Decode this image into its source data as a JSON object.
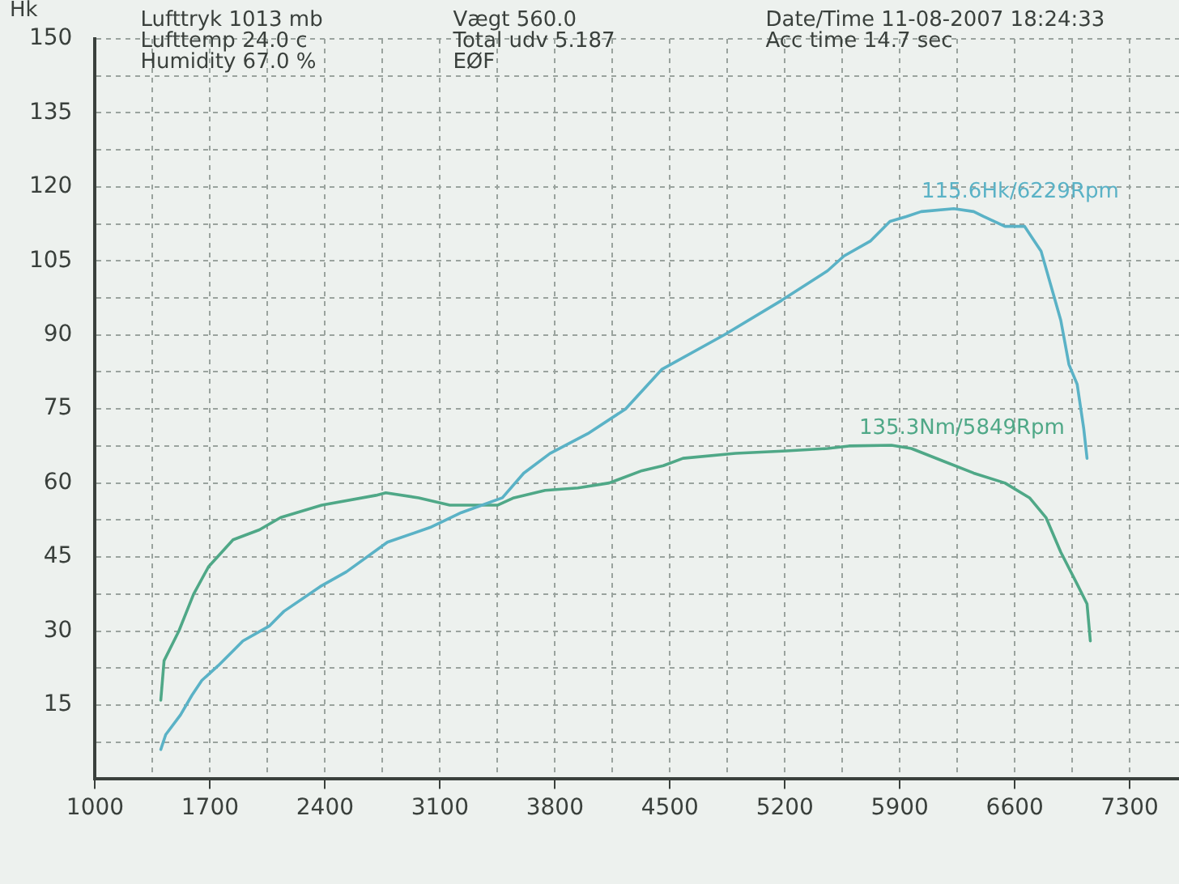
{
  "chart_data": {
    "type": "line",
    "ylabel": "Hk",
    "annotations": [
      "Lufttryk 1013 mb",
      "Lufttemp 24.0 c",
      "Humidity 67.0 %",
      "Vægt 560.0",
      "Total udv 5.187",
      "EØF",
      "Date/Time 11-08-2007 18:24:33",
      "Acc time 14.7 sec"
    ],
    "xlim": [
      1000,
      7600
    ],
    "xticks": [
      1000,
      {
        "value": 1350,
        "label": null
      },
      1700,
      {
        "value": 2050,
        "label": null
      },
      2400,
      {
        "value": 2750,
        "label": null
      },
      3100,
      {
        "value": 3450,
        "label": null
      },
      3800,
      {
        "value": 4150,
        "label": null
      },
      4500,
      {
        "value": 4850,
        "label": null
      },
      5200,
      {
        "value": 5550,
        "label": null
      },
      5900,
      {
        "value": 6250,
        "label": null
      },
      6600,
      {
        "value": 6950,
        "label": null
      },
      7300
    ],
    "ylim": [
      0,
      150
    ],
    "yticks": [
      {
        "value": 0,
        "label": null
      },
      {
        "value": 7.5,
        "label": null
      },
      15,
      {
        "value": 22.5,
        "label": null
      },
      30,
      {
        "value": 37.5,
        "label": null
      },
      45,
      {
        "value": 52.5,
        "label": null
      },
      60,
      {
        "value": 67.5,
        "label": null
      },
      75,
      {
        "value": 82.5,
        "label": null
      },
      90,
      {
        "value": 97.5,
        "label": null
      },
      105,
      {
        "value": 112.5,
        "label": null
      },
      120,
      {
        "value": 127.5,
        "label": null
      },
      135,
      {
        "value": 142.5,
        "label": null
      },
      150
    ],
    "y2lim": [
      0,
      300
    ],
    "grid": true,
    "marker": "none",
    "line_style": "solid",
    "series": [
      {
        "color": "#5ab2c6",
        "x": [
          1400,
          1430,
          1520,
          1590,
          1650,
          1750,
          1840,
          1900,
          2060,
          2150,
          2370,
          2530,
          2780,
          3040,
          3230,
          3480,
          3610,
          3770,
          4000,
          4230,
          4450,
          4830,
          5180,
          5460,
          5560,
          5720,
          5840,
          5940,
          6030,
          6229,
          6350,
          6410,
          6540,
          6660,
          6760,
          6820,
          6880,
          6930,
          6980,
          7020,
          7040
        ],
        "values": [
          6,
          9,
          13,
          17,
          20,
          23,
          26,
          28,
          31,
          34,
          39,
          42,
          48,
          51,
          54,
          57,
          62,
          66,
          70,
          75,
          83,
          90,
          97,
          103,
          106,
          109,
          113,
          114,
          115,
          115.6,
          115,
          114,
          112,
          112,
          107,
          100,
          93,
          84,
          80,
          71,
          65
        ],
        "value_labels": [
          null,
          null,
          null,
          null,
          null,
          null,
          null,
          null,
          null,
          null,
          null,
          null,
          null,
          null,
          null,
          null,
          null,
          null,
          null,
          null,
          null,
          null,
          null,
          null,
          null,
          null,
          null,
          null,
          null,
          "115.6Hk/6229Rpm",
          null,
          null,
          null,
          null,
          null,
          null,
          null,
          null,
          null,
          null,
          null
        ]
      },
      {
        "color": "#4fa887",
        "axis": "y2",
        "x": [
          1400,
          1420,
          1510,
          1600,
          1690,
          1840,
          2000,
          2130,
          2380,
          2710,
          2770,
          2970,
          3160,
          3350,
          3450,
          3550,
          3740,
          3940,
          4130,
          4330,
          4460,
          4580,
          4900,
          5210,
          5460,
          5590,
          5849,
          5970,
          6160,
          6350,
          6540,
          6690,
          6790,
          6880,
          6980,
          7040,
          7060
        ],
        "values": [
          32,
          48,
          60,
          75,
          86,
          97,
          101,
          106,
          111,
          115,
          116,
          114,
          111,
          111,
          111,
          114,
          117,
          118,
          120,
          125,
          127,
          130,
          132,
          133,
          134,
          135,
          135.3,
          134,
          129,
          124,
          120,
          114,
          106,
          92,
          79,
          71,
          56
        ],
        "value_labels": [
          null,
          null,
          null,
          null,
          null,
          null,
          null,
          null,
          null,
          null,
          null,
          null,
          null,
          null,
          null,
          null,
          null,
          null,
          null,
          null,
          null,
          null,
          null,
          null,
          null,
          null,
          "135.3Nm/5849Rpm",
          null,
          null,
          null,
          null,
          null,
          null,
          null,
          null,
          null,
          null
        ]
      }
    ]
  }
}
